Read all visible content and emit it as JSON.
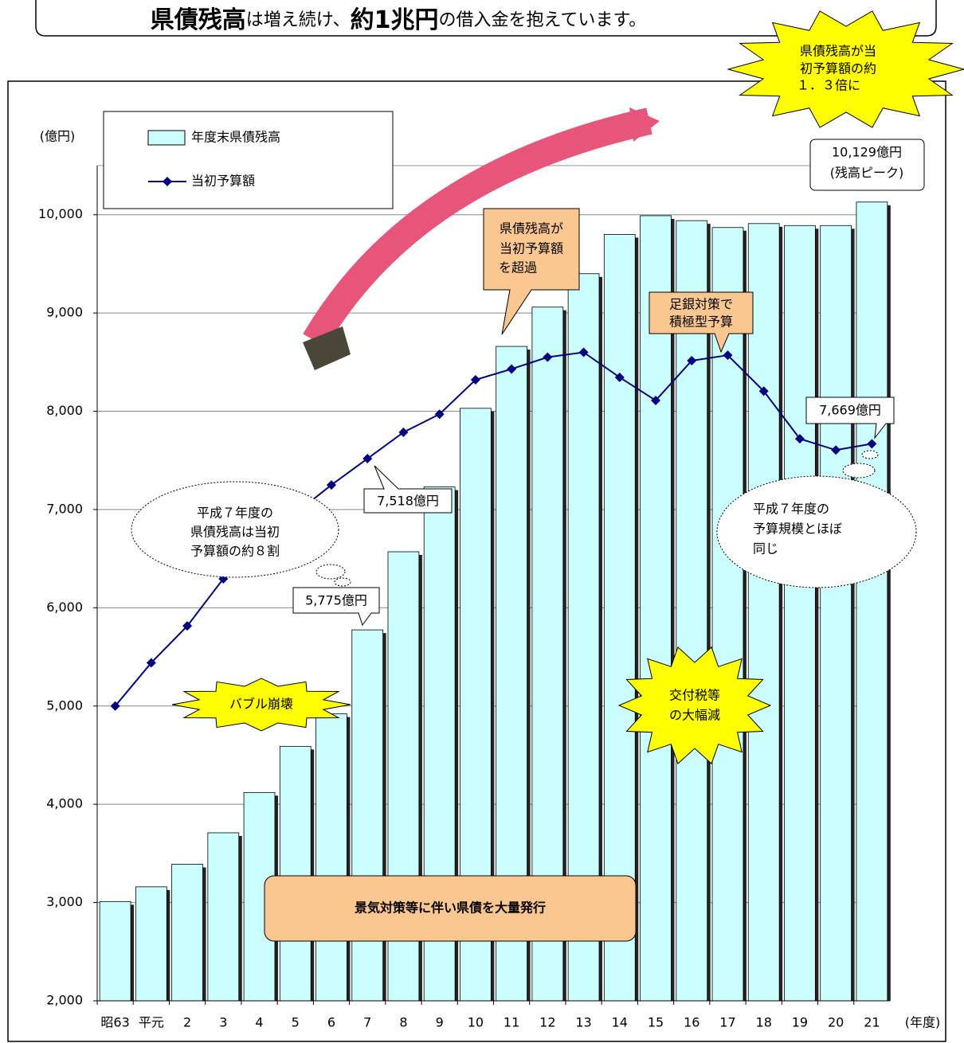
{
  "header": {
    "parts": [
      "県債残高",
      "は増え続け、",
      "約1兆円",
      "の借入金を抱えています。"
    ]
  },
  "chart_data": {
    "type": "bar-line",
    "y_axis_label": "(億円)",
    "x_axis_label": "(年度)",
    "categories": [
      "昭63",
      "平元",
      "2",
      "3",
      "4",
      "5",
      "6",
      "7",
      "8",
      "9",
      "10",
      "11",
      "12",
      "13",
      "14",
      "15",
      "16",
      "17",
      "18",
      "19",
      "20",
      "21"
    ],
    "series": [
      {
        "name": "年度末県債残高",
        "kind": "bar",
        "color": "#ccffff",
        "values": [
          3010,
          3160,
          3390,
          3710,
          4120,
          4590,
          4920,
          5775,
          6570,
          7230,
          8030,
          8660,
          9060,
          9400,
          9800,
          9990,
          9940,
          9870,
          9910,
          9890,
          9890,
          10129
        ],
        "value_labels": [
          null,
          null,
          null,
          null,
          null,
          null,
          null,
          "5,775億円",
          null,
          null,
          null,
          null,
          null,
          null,
          null,
          null,
          null,
          null,
          null,
          null,
          null,
          "10,129億円"
        ]
      },
      {
        "name": "当初予算額",
        "kind": "line",
        "color": "#000080",
        "values": [
          5000,
          5440,
          5815,
          6295,
          6650,
          6960,
          7250,
          7518,
          7786,
          7970,
          8320,
          8430,
          8550,
          8600,
          8345,
          8110,
          8515,
          8570,
          8205,
          7720,
          7605,
          7669
        ],
        "value_labels": [
          null,
          null,
          null,
          null,
          null,
          null,
          null,
          "7,518億円",
          null,
          null,
          null,
          null,
          null,
          null,
          null,
          null,
          null,
          null,
          null,
          null,
          null,
          "7,669億円"
        ]
      }
    ],
    "ylim": [
      2000,
      10500
    ],
    "yticks": [
      {
        "value": 2000,
        "label": "2,000"
      },
      {
        "value": 3000,
        "label": "3,000"
      },
      {
        "value": 4000,
        "label": "4,000"
      },
      {
        "value": 5000,
        "label": "5,000"
      },
      {
        "value": 6000,
        "label": "6,000"
      },
      {
        "value": 7000,
        "label": "7,000"
      },
      {
        "value": 8000,
        "label": "8,000"
      },
      {
        "value": 9000,
        "label": "9,000"
      },
      {
        "value": 10000,
        "label": "10,000"
      }
    ],
    "grid": true,
    "annotations": [
      {
        "lines": [
          "県債残高が当",
          "初予算額の約",
          "１．３倍に"
        ]
      },
      {
        "lines": [
          "県債残高が",
          "当初予算額",
          "を超過"
        ]
      },
      {
        "lines": [
          "足銀対策で",
          "積極型予算"
        ]
      },
      {
        "lines": [
          "平成７年度の",
          "県債残高は当初",
          "予算額の約８割"
        ]
      },
      {
        "lines": [
          "平成７年度の",
          "予算規模とほぼ",
          "同じ"
        ]
      },
      {
        "lines": [
          "バブル崩壊"
        ]
      },
      {
        "lines": [
          "交付税等",
          "の大幅減"
        ]
      },
      {
        "lines": [
          "景気対策等に伴い県債を大量発行"
        ]
      },
      {
        "lines": [
          "(残高ピーク)"
        ]
      }
    ]
  }
}
